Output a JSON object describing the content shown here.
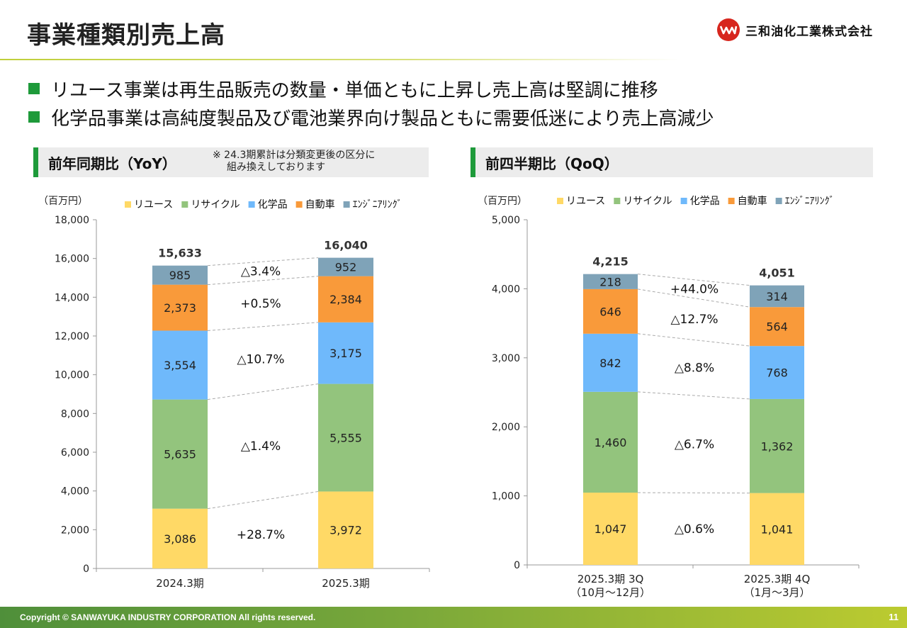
{
  "page": {
    "title": "事業種類別売上高",
    "company": "三和油化工業株式会社",
    "bullets": [
      "リユース事業は再生品販売の数量・単価ともに上昇し売上高は堅調に推移",
      "化学品事業は高純度製品及び電池業界向け製品ともに需要低迷により売上高減少"
    ],
    "yoy_section": "前年同期比（YoY）",
    "yoy_note_1": "※ 24.3期累計は分類変更後の区分に",
    "yoy_note_2": "組み換えしております",
    "qoq_section": "前四半期比（QoQ）",
    "copyright": "Copyright © SANWAYUKA INDUSTRY CORPORATION All rights reserved.",
    "page_number": "11"
  },
  "chart_data": [
    {
      "type": "bar",
      "stacked": true,
      "unit_label": "（百万円）",
      "ylim": [
        0,
        18000
      ],
      "yticks": [
        "0",
        "2,000",
        "4,000",
        "6,000",
        "8,000",
        "10,000",
        "12,000",
        "14,000",
        "16,000",
        "18,000"
      ],
      "categories": [
        [
          "2024.3期"
        ],
        [
          "2025.3期"
        ]
      ],
      "totals": [
        "15,633",
        "16,040"
      ],
      "series": [
        {
          "name": "リユース",
          "color": "#ffd966",
          "values": [
            3086,
            3972
          ],
          "labels": [
            "3,086",
            "3,972"
          ],
          "change": "+28.7%"
        },
        {
          "name": "リサイクル",
          "color": "#93c47d",
          "values": [
            5635,
            5555
          ],
          "labels": [
            "5,635",
            "5,555"
          ],
          "change": "△1.4%"
        },
        {
          "name": "化学品",
          "color": "#6fb9fb",
          "values": [
            3554,
            3175
          ],
          "labels": [
            "3,554",
            "3,175"
          ],
          "change": "△10.7%"
        },
        {
          "name": "自動車",
          "color": "#f99a3a",
          "values": [
            2373,
            2384
          ],
          "labels": [
            "2,373",
            "2,384"
          ],
          "change": "+0.5%"
        },
        {
          "name": "ｴﾝｼﾞﾆｱﾘﾝｸﾞ",
          "color": "#7fa3b8",
          "values": [
            985,
            952
          ],
          "labels": [
            "985",
            "952"
          ],
          "change": "△3.4%"
        }
      ]
    },
    {
      "type": "bar",
      "stacked": true,
      "unit_label": "（百万円）",
      "ylim": [
        0,
        5000
      ],
      "yticks": [
        "0",
        "1,000",
        "2,000",
        "3,000",
        "4,000",
        "5,000"
      ],
      "categories": [
        [
          "2025.3期 3Q",
          "（10月～12月）"
        ],
        [
          "2025.3期 4Q",
          "（1月～3月）"
        ]
      ],
      "totals": [
        "4,215",
        "4,051"
      ],
      "series": [
        {
          "name": "リユース",
          "color": "#ffd966",
          "values": [
            1047,
            1041
          ],
          "labels": [
            "1,047",
            "1,041"
          ],
          "change": "△0.6%"
        },
        {
          "name": "リサイクル",
          "color": "#93c47d",
          "values": [
            1460,
            1362
          ],
          "labels": [
            "1,460",
            "1,362"
          ],
          "change": "△6.7%"
        },
        {
          "name": "化学品",
          "color": "#6fb9fb",
          "values": [
            842,
            768
          ],
          "labels": [
            "842",
            "768"
          ],
          "change": "△8.8%"
        },
        {
          "name": "自動車",
          "color": "#f99a3a",
          "values": [
            646,
            564
          ],
          "labels": [
            "646",
            "564"
          ],
          "change": "△12.7%"
        },
        {
          "name": "ｴﾝｼﾞﾆｱﾘﾝｸﾞ",
          "color": "#7fa3b8",
          "values": [
            218,
            314
          ],
          "labels": [
            "218",
            "314"
          ],
          "change": "+44.0%"
        }
      ]
    }
  ]
}
